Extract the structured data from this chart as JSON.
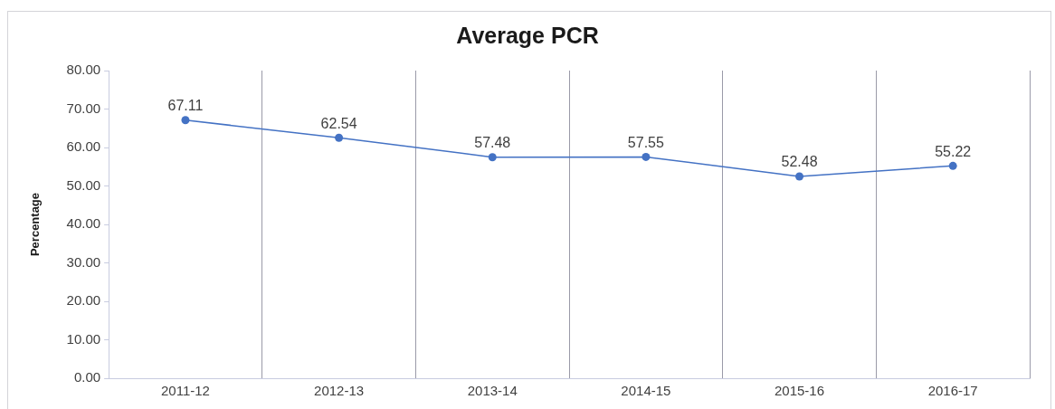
{
  "chart_data": {
    "type": "line",
    "title": "Average PCR",
    "ylabel": "Percentage",
    "categories": [
      "2011-12",
      "2012-13",
      "2013-14",
      "2014-15",
      "2015-16",
      "2016-17"
    ],
    "series": [
      {
        "color": "#4472c4",
        "values": [
          67.11,
          62.54,
          57.48,
          57.55,
          52.48,
          55.22
        ]
      }
    ],
    "ylim": [
      0,
      80
    ],
    "yticks": [
      {
        "value": 0,
        "label": "0.00"
      },
      {
        "value": 10,
        "label": "10.00"
      },
      {
        "value": 20,
        "label": "20.00"
      },
      {
        "value": 30,
        "label": "30.00"
      },
      {
        "value": 40,
        "label": "40.00"
      },
      {
        "value": 50,
        "label": "50.00"
      },
      {
        "value": 60,
        "label": "60.00"
      },
      {
        "value": 70,
        "label": "70.00"
      },
      {
        "value": 80,
        "label": "80.00"
      }
    ],
    "grid": "x",
    "marker": "circle",
    "line_style": "solid",
    "data_labels": true
  }
}
